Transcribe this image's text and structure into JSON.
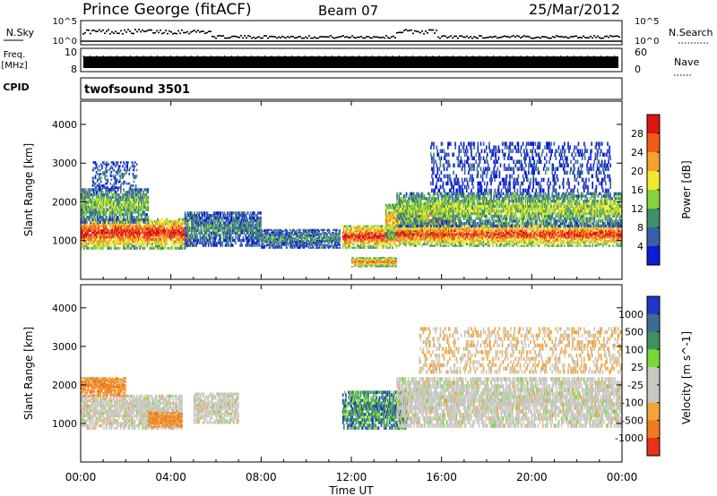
{
  "header": {
    "station": "Prince George (fitACF)",
    "beam": "Beam 07",
    "date": "25/Mar/2012"
  },
  "status_rows": {
    "nsky_label": "N.Sky",
    "nsky_ticks": [
      "10^5",
      "10^0"
    ],
    "nsearch_label": "N.Search",
    "nsearch_ticks": [
      "10^5",
      "10^0"
    ],
    "freq_label_top": "Freq.",
    "freq_label_unit": "[MHz]",
    "freq_ticks": [
      "10",
      "8"
    ],
    "nave_label": "Nave",
    "nave_ticks": [
      "60",
      "0"
    ],
    "cpid_label": "CPID",
    "cpid_value": "twofsound 3501"
  },
  "x_axis": {
    "label": "Time UT",
    "ticks": [
      "00:00",
      "04:00",
      "08:00",
      "12:00",
      "16:00",
      "20:00",
      "00:00"
    ]
  },
  "chart_data": [
    {
      "type": "heatmap",
      "quantity": "power",
      "x_range_hours": [
        0,
        24
      ],
      "ylabel": "Slant Range [km]",
      "ylim": [
        0,
        4600
      ],
      "yticks": [
        "1000",
        "2000",
        "3000",
        "4000"
      ],
      "colorbar": {
        "label": "Power [dB]",
        "ticks": [
          "4",
          "8",
          "12",
          "16",
          "20",
          "24",
          "28"
        ],
        "colors": [
          "#0b1bd6",
          "#3a5fa8",
          "#3f8f6a",
          "#86d23c",
          "#f0ea2a",
          "#f5a12a",
          "#f05a18",
          "#e11414"
        ]
      },
      "bands": [
        {
          "t0": 0.0,
          "t1": 4.8,
          "center": 1180,
          "width": 800,
          "intensity": 0.95
        },
        {
          "t0": 0.0,
          "t1": 3.0,
          "center": 1900,
          "width": 900,
          "intensity": 0.45
        },
        {
          "t0": 0.5,
          "t1": 2.5,
          "center": 2700,
          "width": 700,
          "intensity": 0.2
        },
        {
          "t0": 4.6,
          "t1": 8.0,
          "center": 1300,
          "width": 900,
          "intensity": 0.3
        },
        {
          "t0": 8.0,
          "t1": 11.5,
          "center": 1050,
          "width": 500,
          "intensity": 0.3
        },
        {
          "t0": 11.6,
          "t1": 14.0,
          "center": 1100,
          "width": 600,
          "intensity": 0.95
        },
        {
          "t0": 12.0,
          "t1": 14.0,
          "center": 450,
          "width": 250,
          "intensity": 0.8
        },
        {
          "t0": 13.5,
          "t1": 16.5,
          "center": 1500,
          "width": 900,
          "intensity": 0.7
        },
        {
          "t0": 14.0,
          "t1": 24.0,
          "center": 1150,
          "width": 600,
          "intensity": 0.9
        },
        {
          "t0": 14.0,
          "t1": 24.0,
          "center": 1800,
          "width": 900,
          "intensity": 0.5
        },
        {
          "t0": 15.5,
          "t1": 23.5,
          "center": 2900,
          "width": 1300,
          "intensity": 0.15
        }
      ]
    },
    {
      "type": "heatmap",
      "quantity": "velocity",
      "x_range_hours": [
        0,
        24
      ],
      "ylabel": "Slant Range [km]",
      "ylim": [
        0,
        4600
      ],
      "yticks": [
        "1000",
        "2000",
        "3000",
        "4000"
      ],
      "colorbar": {
        "label": "Velocity [m s^-1]",
        "ticks": [
          "1000",
          "500",
          "100",
          "25",
          "-25",
          "-100",
          "-500",
          "-1000"
        ],
        "colors": [
          "#2235c8",
          "#3d6b95",
          "#3f9160",
          "#77d838",
          "#c8c8c2",
          "#c8c8c2",
          "#f3a53a",
          "#f07a20",
          "#e8301a"
        ]
      },
      "bands": [
        {
          "t0": 0.0,
          "t1": 4.5,
          "center": 1300,
          "width": 900,
          "v": "gray"
        },
        {
          "t0": 0.0,
          "t1": 2.0,
          "center": 1950,
          "width": 500,
          "v": "orange"
        },
        {
          "t0": 3.0,
          "t1": 4.5,
          "center": 1100,
          "width": 400,
          "v": "orange"
        },
        {
          "t0": 5.0,
          "t1": 7.0,
          "center": 1400,
          "width": 800,
          "v": "gray"
        },
        {
          "t0": 11.6,
          "t1": 14.5,
          "center": 1350,
          "width": 1000,
          "v": "green"
        },
        {
          "t0": 14.0,
          "t1": 24.0,
          "center": 1550,
          "width": 1300,
          "v": "gray"
        },
        {
          "t0": 15.0,
          "t1": 24.0,
          "center": 2900,
          "width": 1200,
          "v": "orange-sparse"
        }
      ]
    }
  ],
  "colors": {
    "axis": "#000000",
    "background": "#ffffff"
  }
}
